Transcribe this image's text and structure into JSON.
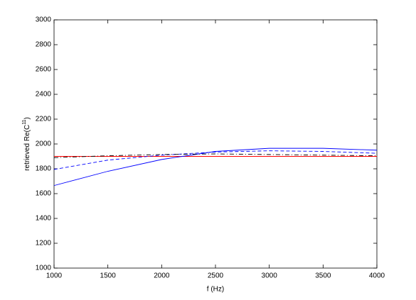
{
  "chart_data": {
    "type": "line",
    "xlabel": "f (Hz)",
    "ylabel": [
      "retrieved Re(C",
      "11",
      ")"
    ],
    "x": [
      1000,
      1500,
      2000,
      2500,
      3000,
      3500,
      4000
    ],
    "series": [
      {
        "color": "#ff0000",
        "dash": "solid",
        "values": [
          1900,
          1900,
          1900,
          1900,
          1900,
          1900,
          1900
        ]
      },
      {
        "color": "#0000ff",
        "dash": "solid",
        "values": [
          1665,
          1780,
          1875,
          1940,
          1965,
          1965,
          1950
        ]
      },
      {
        "color": "#0000ff",
        "dash": "dashed",
        "values": [
          1795,
          1870,
          1910,
          1935,
          1945,
          1940,
          1925
        ]
      },
      {
        "color": "#000000",
        "dash": "dashdot",
        "values": [
          1890,
          1905,
          1915,
          1920,
          1915,
          1910,
          1905
        ]
      }
    ],
    "xlim": [
      1000,
      4000
    ],
    "xticks": [
      1000,
      1500,
      2000,
      2500,
      3000,
      3500,
      4000
    ],
    "ylim": [
      1000,
      3000
    ],
    "yticks": [
      1000,
      1200,
      1400,
      1600,
      1800,
      2000,
      2200,
      2400,
      2600,
      2800,
      3000
    ],
    "grid": false
  }
}
